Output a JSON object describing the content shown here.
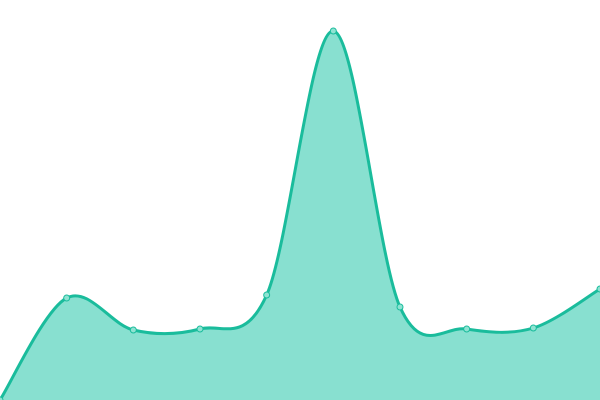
{
  "chart_data": {
    "type": "area",
    "x": [
      0,
      1,
      2,
      3,
      4,
      5,
      6,
      7,
      8,
      9
    ],
    "values": [
      0,
      102,
      70,
      71,
      105,
      369,
      93,
      71,
      72,
      111
    ],
    "ylim": [
      0,
      400
    ],
    "xlim": [
      0,
      9
    ],
    "grid": false,
    "curve": "smooth",
    "colors": {
      "line": "#1abc9c",
      "fill": "#88e0d0",
      "point": "#8fe3d2"
    }
  }
}
